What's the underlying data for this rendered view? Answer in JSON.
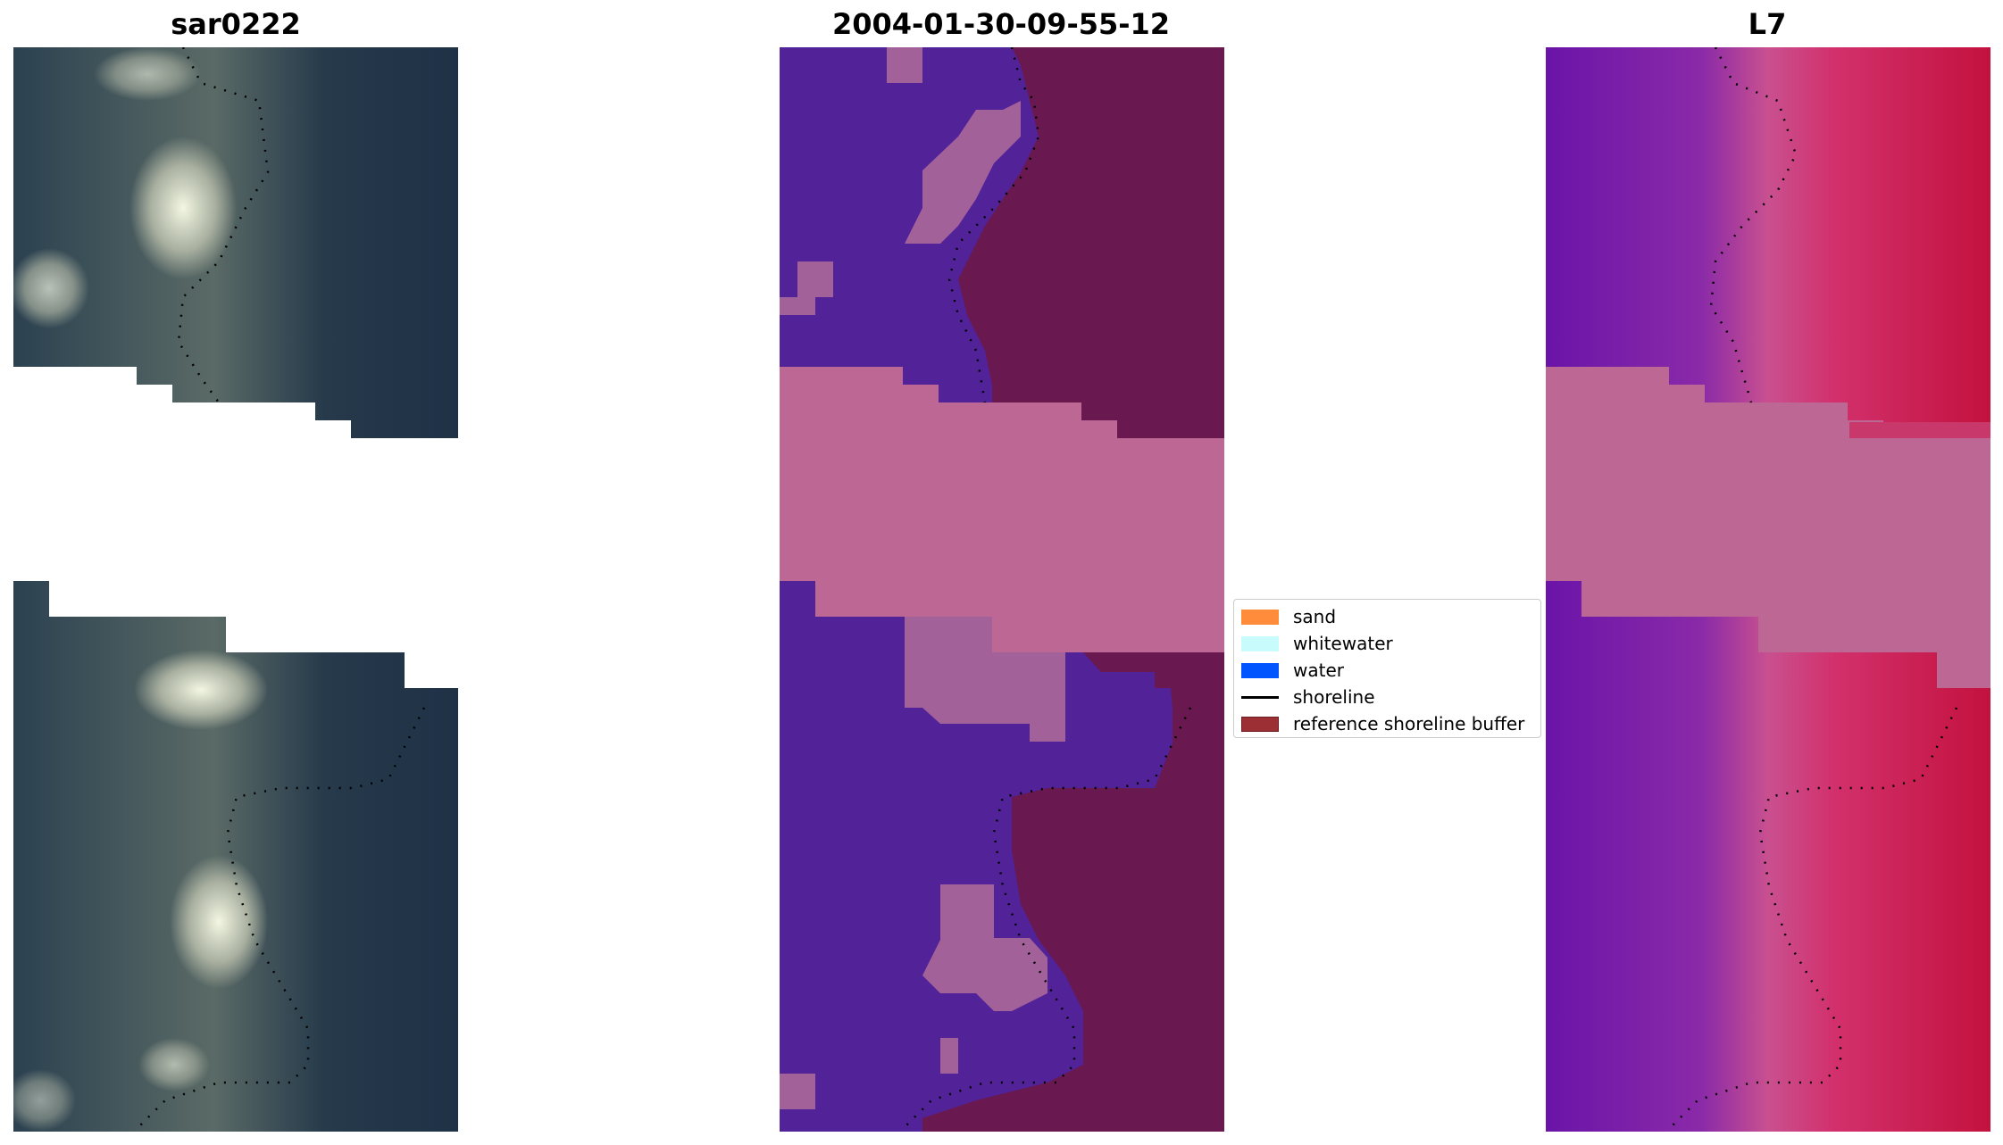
{
  "titles": {
    "rgb": "sar0222",
    "classification": "2004-01-30-09-55-12",
    "mndwi": "L7"
  },
  "legend": {
    "items": [
      {
        "label": "sand",
        "color": "#ff8c3a",
        "kind": "patch"
      },
      {
        "label": "whitewater",
        "color": "#c8fbfb",
        "kind": "patch"
      },
      {
        "label": "water",
        "color": "#0055ff",
        "kind": "patch"
      },
      {
        "label": "shoreline",
        "color": "#000000",
        "kind": "line"
      },
      {
        "label": "reference shoreline buffer",
        "color": "#9b2f33",
        "kind": "patch"
      }
    ]
  },
  "colors": {
    "rgb_dark": "#233447",
    "rgb_mid": "#3a4a56",
    "rgb_bright": "#d9e0cf",
    "class_water": "#512298",
    "class_sand": "#a26198",
    "class_land": "#6a1850",
    "nodata_pink": "#bd6894",
    "mndwi_purple": "#7a22a2",
    "mndwi_red": "#c9194f"
  }
}
